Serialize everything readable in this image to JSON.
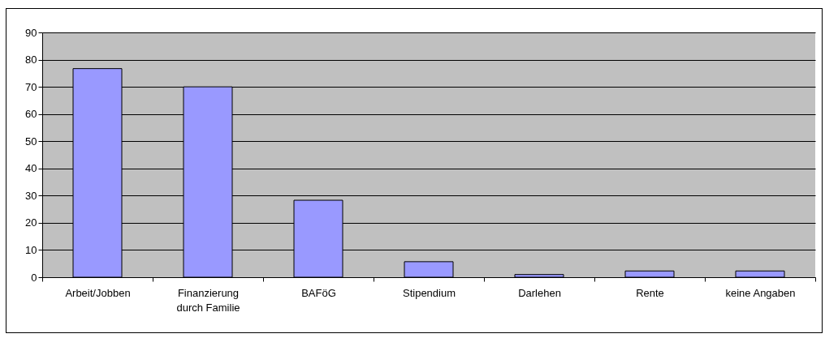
{
  "chart_data": {
    "type": "bar",
    "categories": [
      "Arbeit/Jobben",
      "Finanzierung durch Familie",
      "BAFöG",
      "Stipendium",
      "Darlehen",
      "Rente",
      "keine Angaben"
    ],
    "values": [
      76.7,
      70,
      28.3,
      5.7,
      1,
      2.3,
      2.3
    ],
    "color": "#9999ff",
    "ylim": [
      0,
      90
    ],
    "yticks": [
      0,
      10,
      20,
      30,
      40,
      50,
      60,
      70,
      80,
      90
    ],
    "grid": "y"
  }
}
